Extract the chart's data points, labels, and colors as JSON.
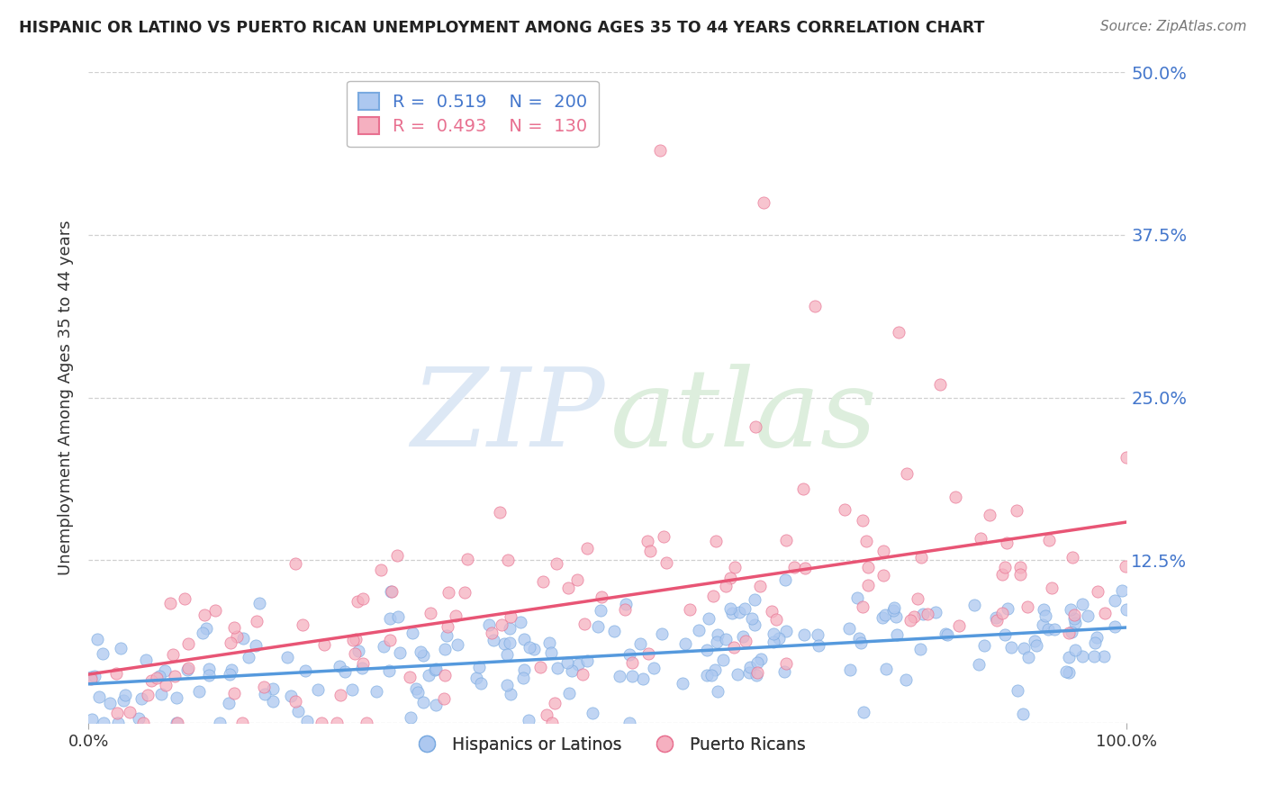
{
  "title": "HISPANIC OR LATINO VS PUERTO RICAN UNEMPLOYMENT AMONG AGES 35 TO 44 YEARS CORRELATION CHART",
  "source": "Source: ZipAtlas.com",
  "ylabel": "Unemployment Among Ages 35 to 44 years",
  "xlim": [
    0,
    1
  ],
  "ylim": [
    0,
    0.5
  ],
  "yticks": [
    0.0,
    0.125,
    0.25,
    0.375,
    0.5
  ],
  "ytick_labels": [
    "",
    "12.5%",
    "25.0%",
    "37.5%",
    "50.0%"
  ],
  "xtick_labels": [
    "0.0%",
    "100.0%"
  ],
  "blue_label": "Hispanics or Latinos",
  "pink_label": "Puerto Ricans",
  "blue_R": "0.519",
  "blue_N": "200",
  "pink_R": "0.493",
  "pink_N": "130",
  "blue_scatter_color": "#adc8f0",
  "blue_edge_color": "#7aaae0",
  "pink_scatter_color": "#f5b0c0",
  "pink_edge_color": "#e87090",
  "blue_line_color": "#5599dd",
  "pink_line_color": "#e85575",
  "title_color": "#222222",
  "axis_color": "#4477cc",
  "source_color": "#777777",
  "ylabel_color": "#333333",
  "grid_color": "#d0d0d0",
  "background_color": "#ffffff",
  "watermark_zip_color": "#dde8f5",
  "watermark_atlas_color": "#ddeedd",
  "seed": 12,
  "n_blue": 200,
  "n_pink": 130
}
